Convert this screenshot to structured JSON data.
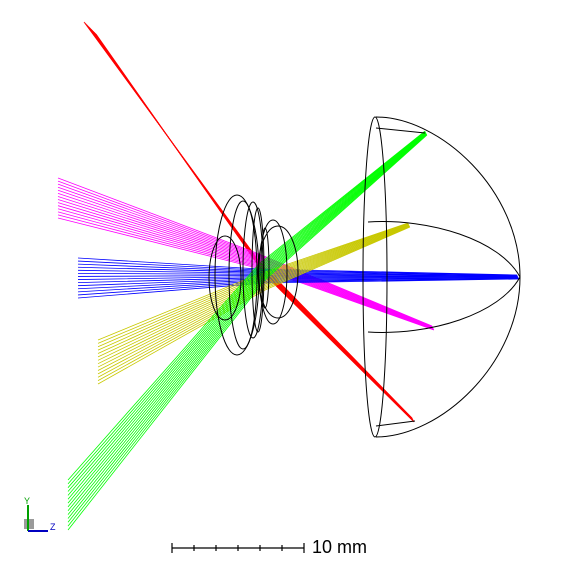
{
  "scale_bar": {
    "label": "10 mm"
  },
  "axis_triad": {
    "y_label": "Y",
    "z_label": "Z"
  },
  "ray_fields": [
    {
      "color": "#ff0000",
      "target": "red-rays-spot"
    },
    {
      "color": "#ff00ff",
      "target": "magenta-rays-spot"
    },
    {
      "color": "#0000ff",
      "target": "blue-rays-spot"
    },
    {
      "color": "#c8c800",
      "target": "yellow-rays-spot"
    },
    {
      "color": "#00ff00",
      "target": "green-rays-spot"
    }
  ],
  "colors": {
    "outline": "#000000",
    "background": "#ffffff",
    "triad_y": "#00a000",
    "triad_z": "#0000c0"
  }
}
